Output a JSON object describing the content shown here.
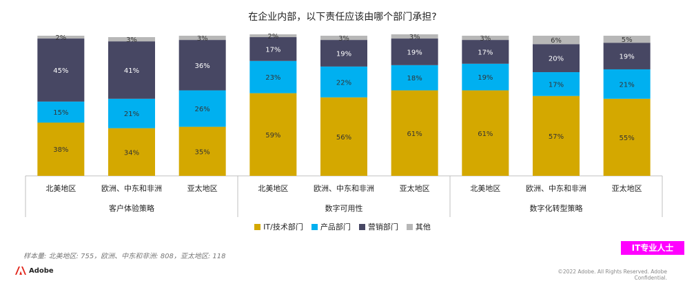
{
  "chart_data": {
    "type": "bar",
    "stacked": true,
    "title": "在企业内部，以下责任应该由哪个部门承担?",
    "groups": [
      {
        "name": "客户体验策略",
        "categories": [
          "北美地区",
          "欧洲、中东和非洲",
          "亚太地区"
        ]
      },
      {
        "name": "数字可用性",
        "categories": [
          "北美地区",
          "欧洲、中东和非洲",
          "亚太地区"
        ]
      },
      {
        "name": "数字化转型策略",
        "categories": [
          "北美地区",
          "欧洲、中东和非洲",
          "亚太地区"
        ]
      }
    ],
    "series": [
      {
        "name": "IT/技术部门",
        "color": "#d4a800",
        "values": [
          38,
          34,
          35,
          59,
          56,
          61,
          61,
          57,
          55
        ]
      },
      {
        "name": "产品部门",
        "color": "#00b0f0",
        "values": [
          15,
          21,
          26,
          23,
          22,
          18,
          19,
          17,
          21
        ]
      },
      {
        "name": "营销部门",
        "color": "#474763",
        "values": [
          45,
          41,
          36,
          17,
          19,
          19,
          17,
          20,
          19
        ]
      },
      {
        "name": "其他",
        "color": "#b7b7b7",
        "values": [
          2,
          3,
          3,
          2,
          3,
          3,
          3,
          6,
          5
        ]
      }
    ],
    "ylim": [
      0,
      100
    ],
    "legend_position": "bottom",
    "grid": false
  },
  "footer": {
    "sample_note": "样本量: 北美地区: 755，欧洲、中东和非洲: 808，亚太地区: 118",
    "badge": "IT专业人士",
    "logo": "Adobe",
    "copyright": "©2022 Adobe. All Rights Reserved. Adobe Confidential."
  }
}
